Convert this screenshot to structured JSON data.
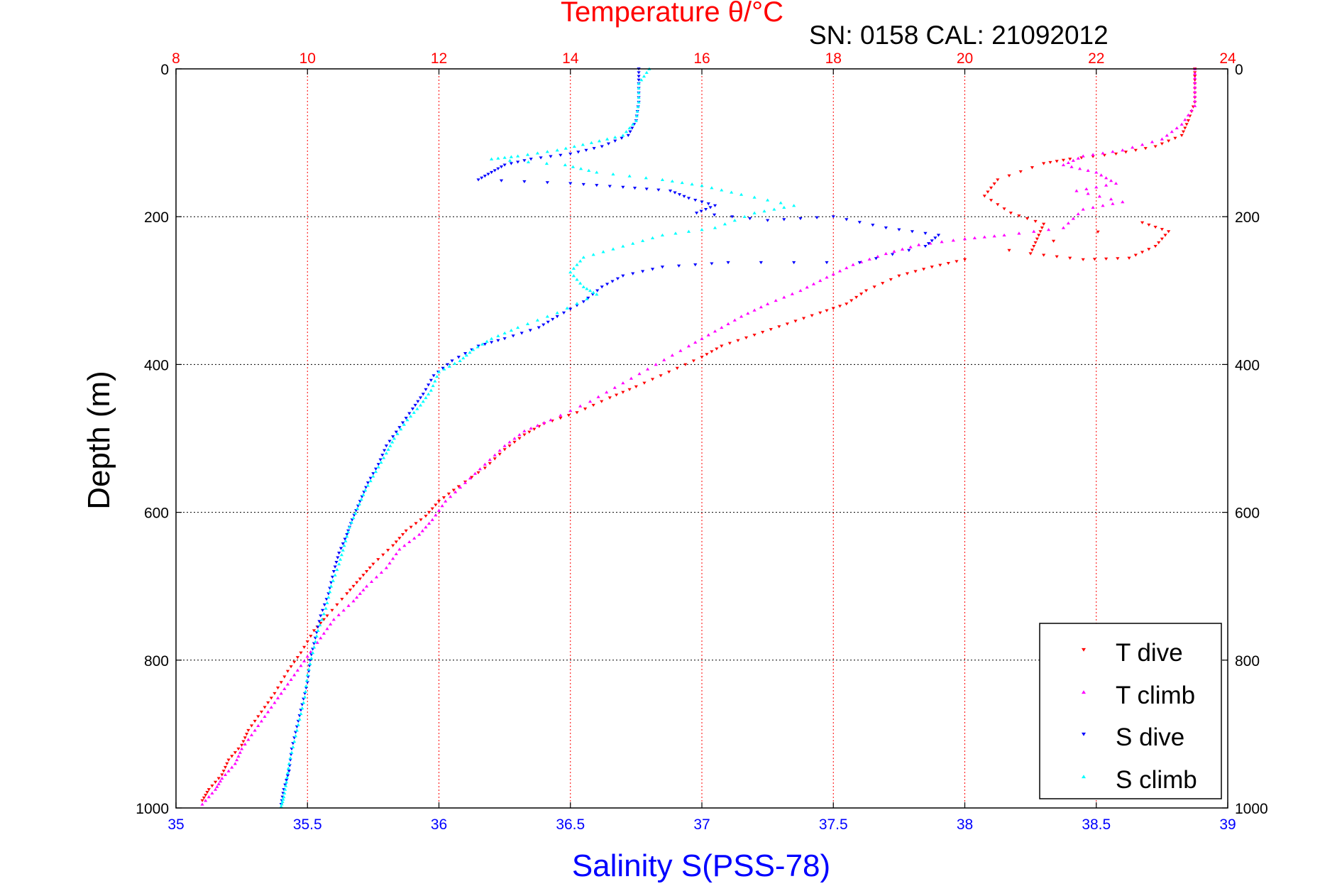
{
  "colors": {
    "temperature_axis": "#ff0000",
    "salinity_axis": "#0000ff",
    "depth_axis": "#000000",
    "grid_depth": "#000000",
    "grid_temperature": "#ff0000"
  },
  "chart_data": {
    "type": "scatter",
    "title": "Temperature θ/°C",
    "subtitle": "SN: 0158  CAL: 21092012",
    "xlabel": "Salinity S(PSS-78)",
    "ylabel": "Depth (m)",
    "x_salinity": {
      "lim": [
        35,
        39
      ],
      "ticks": [
        35,
        35.5,
        36,
        36.5,
        37,
        37.5,
        38,
        38.5,
        39
      ],
      "tick_labels": [
        "35",
        "35.5",
        "36",
        "36.5",
        "37",
        "37.5",
        "38",
        "38.5",
        "39"
      ],
      "position": "bottom"
    },
    "x_temperature": {
      "lim": [
        8,
        24
      ],
      "ticks": [
        8,
        10,
        12,
        14,
        16,
        18,
        20,
        22,
        24
      ],
      "tick_labels": [
        "8",
        "10",
        "12",
        "14",
        "16",
        "18",
        "20",
        "22",
        "24"
      ],
      "position": "top"
    },
    "y_depth": {
      "lim": [
        0,
        1000
      ],
      "reversed": true,
      "ticks": [
        0,
        200,
        400,
        600,
        800,
        1000
      ],
      "tick_labels": [
        "0",
        "200",
        "400",
        "600",
        "800",
        "1000"
      ],
      "position": "left and right"
    },
    "grid": true,
    "legend": {
      "placement": "bottom-right"
    },
    "series": [
      {
        "name": "T dive",
        "axis": "temperature",
        "color": "#ff0000",
        "marker": "triangle-down",
        "points": [
          [
            23.5,
            0
          ],
          [
            23.5,
            20
          ],
          [
            23.5,
            45
          ],
          [
            23.4,
            70
          ],
          [
            23.3,
            90
          ],
          [
            22.9,
            105
          ],
          [
            22.3,
            115
          ],
          [
            21.6,
            122
          ],
          [
            21.2,
            128
          ],
          [
            20.5,
            150
          ],
          [
            20.3,
            172
          ],
          [
            20.7,
            195
          ],
          [
            21.2,
            210
          ],
          [
            21.1,
            230
          ],
          [
            21.0,
            250
          ],
          [
            21.8,
            258
          ],
          [
            22.5,
            256
          ],
          [
            22.9,
            240
          ],
          [
            23.1,
            220
          ],
          [
            22.7,
            208
          ],
          [
            20.0,
            258
          ],
          [
            19.5,
            268
          ],
          [
            19.0,
            280
          ],
          [
            18.5,
            300
          ],
          [
            18.2,
            318
          ],
          [
            17.8,
            330
          ],
          [
            17.3,
            345
          ],
          [
            16.8,
            360
          ],
          [
            16.3,
            375
          ],
          [
            16.0,
            390
          ],
          [
            15.5,
            410
          ],
          [
            15.0,
            430
          ],
          [
            14.6,
            445
          ],
          [
            14.1,
            465
          ],
          [
            13.6,
            480
          ],
          [
            13.3,
            495
          ],
          [
            13.0,
            515
          ],
          [
            12.7,
            540
          ],
          [
            12.3,
            565
          ],
          [
            12.0,
            585
          ],
          [
            11.8,
            605
          ],
          [
            11.5,
            625
          ],
          [
            11.3,
            645
          ],
          [
            11.0,
            670
          ],
          [
            10.8,
            690
          ],
          [
            10.6,
            710
          ],
          [
            10.3,
            740
          ],
          [
            10.1,
            760
          ],
          [
            9.9,
            790
          ],
          [
            9.7,
            815
          ],
          [
            9.5,
            845
          ],
          [
            9.3,
            870
          ],
          [
            9.1,
            895
          ],
          [
            9.0,
            915
          ],
          [
            8.8,
            935
          ],
          [
            8.7,
            955
          ],
          [
            8.5,
            975
          ],
          [
            8.4,
            990
          ]
        ]
      },
      {
        "name": "T climb",
        "axis": "temperature",
        "color": "#ff00ff",
        "marker": "triangle-up",
        "points": [
          [
            23.5,
            0
          ],
          [
            23.5,
            25
          ],
          [
            23.5,
            50
          ],
          [
            23.3,
            75
          ],
          [
            23.0,
            95
          ],
          [
            22.4,
            110
          ],
          [
            21.8,
            118
          ],
          [
            21.5,
            130
          ],
          [
            22.0,
            140
          ],
          [
            22.3,
            155
          ],
          [
            21.7,
            165
          ],
          [
            22.4,
            180
          ],
          [
            21.8,
            190
          ],
          [
            21.5,
            215
          ],
          [
            20.6,
            225
          ],
          [
            20.0,
            230
          ],
          [
            19.3,
            238
          ],
          [
            18.8,
            250
          ],
          [
            18.3,
            265
          ],
          [
            17.9,
            282
          ],
          [
            17.5,
            300
          ],
          [
            17.0,
            318
          ],
          [
            16.6,
            335
          ],
          [
            16.2,
            355
          ],
          [
            15.8,
            375
          ],
          [
            15.3,
            400
          ],
          [
            14.8,
            425
          ],
          [
            14.3,
            450
          ],
          [
            13.7,
            475
          ],
          [
            13.3,
            490
          ],
          [
            13.0,
            510
          ],
          [
            12.7,
            535
          ],
          [
            12.4,
            560
          ],
          [
            12.1,
            585
          ],
          [
            11.9,
            610
          ],
          [
            11.7,
            630
          ],
          [
            11.4,
            650
          ],
          [
            11.2,
            675
          ],
          [
            10.9,
            700
          ],
          [
            10.7,
            720
          ],
          [
            10.4,
            745
          ],
          [
            10.2,
            770
          ],
          [
            10.0,
            795
          ],
          [
            9.8,
            820
          ],
          [
            9.6,
            845
          ],
          [
            9.4,
            870
          ],
          [
            9.2,
            895
          ],
          [
            9.0,
            920
          ],
          [
            8.9,
            940
          ],
          [
            8.7,
            960
          ],
          [
            8.6,
            975
          ],
          [
            8.4,
            995
          ]
        ]
      },
      {
        "name": "S dive",
        "axis": "salinity",
        "color": "#0000ff",
        "marker": "triangle-down",
        "points": [
          [
            36.76,
            0
          ],
          [
            36.76,
            20
          ],
          [
            36.76,
            45
          ],
          [
            36.75,
            70
          ],
          [
            36.72,
            90
          ],
          [
            36.62,
            105
          ],
          [
            36.5,
            115
          ],
          [
            36.35,
            122
          ],
          [
            36.25,
            130
          ],
          [
            36.2,
            140
          ],
          [
            36.15,
            150
          ],
          [
            36.5,
            155
          ],
          [
            36.7,
            160
          ],
          [
            36.88,
            165
          ],
          [
            36.95,
            175
          ],
          [
            37.05,
            185
          ],
          [
            36.98,
            195
          ],
          [
            37.25,
            205
          ],
          [
            37.5,
            200
          ],
          [
            37.7,
            215
          ],
          [
            37.9,
            225
          ],
          [
            37.85,
            240
          ],
          [
            37.6,
            262
          ],
          [
            37.1,
            262
          ],
          [
            36.85,
            268
          ],
          [
            36.7,
            280
          ],
          [
            36.62,
            295
          ],
          [
            36.55,
            315
          ],
          [
            36.45,
            335
          ],
          [
            36.38,
            350
          ],
          [
            36.25,
            365
          ],
          [
            36.15,
            375
          ],
          [
            36.05,
            395
          ],
          [
            35.98,
            415
          ],
          [
            35.94,
            440
          ],
          [
            35.9,
            460
          ],
          [
            35.85,
            485
          ],
          [
            35.8,
            510
          ],
          [
            35.77,
            535
          ],
          [
            35.73,
            560
          ],
          [
            35.7,
            585
          ],
          [
            35.67,
            610
          ],
          [
            35.65,
            630
          ],
          [
            35.62,
            655
          ],
          [
            35.6,
            680
          ],
          [
            35.58,
            710
          ],
          [
            35.55,
            740
          ],
          [
            35.53,
            770
          ],
          [
            35.51,
            800
          ],
          [
            35.5,
            830
          ],
          [
            35.48,
            860
          ],
          [
            35.46,
            890
          ],
          [
            35.44,
            920
          ],
          [
            35.43,
            950
          ],
          [
            35.41,
            975
          ],
          [
            35.4,
            995
          ]
        ]
      },
      {
        "name": "S climb",
        "axis": "salinity",
        "color": "#00ffff",
        "marker": "triangle-up",
        "points": [
          [
            36.8,
            0
          ],
          [
            36.76,
            20
          ],
          [
            36.76,
            45
          ],
          [
            36.75,
            70
          ],
          [
            36.7,
            90
          ],
          [
            36.58,
            100
          ],
          [
            36.45,
            110
          ],
          [
            36.3,
            118
          ],
          [
            36.2,
            122
          ],
          [
            36.48,
            130
          ],
          [
            36.6,
            140
          ],
          [
            36.85,
            150
          ],
          [
            37.0,
            158
          ],
          [
            37.15,
            170
          ],
          [
            37.35,
            185
          ],
          [
            37.2,
            195
          ],
          [
            37.05,
            215
          ],
          [
            36.85,
            225
          ],
          [
            36.7,
            240
          ],
          [
            36.55,
            255
          ],
          [
            36.5,
            275
          ],
          [
            36.55,
            295
          ],
          [
            36.6,
            305
          ],
          [
            36.45,
            330
          ],
          [
            36.3,
            350
          ],
          [
            36.2,
            365
          ],
          [
            36.13,
            380
          ],
          [
            36.08,
            395
          ],
          [
            36.0,
            410
          ],
          [
            35.97,
            435
          ],
          [
            35.93,
            455
          ],
          [
            35.88,
            475
          ],
          [
            35.83,
            500
          ],
          [
            35.8,
            520
          ],
          [
            35.76,
            545
          ],
          [
            35.72,
            570
          ],
          [
            35.69,
            595
          ],
          [
            35.66,
            620
          ],
          [
            35.64,
            645
          ],
          [
            35.62,
            670
          ],
          [
            35.59,
            700
          ],
          [
            35.57,
            730
          ],
          [
            35.54,
            760
          ],
          [
            35.52,
            790
          ],
          [
            35.5,
            820
          ],
          [
            35.49,
            850
          ],
          [
            35.47,
            880
          ],
          [
            35.45,
            910
          ],
          [
            35.43,
            940
          ],
          [
            35.42,
            965
          ],
          [
            35.41,
            985
          ],
          [
            35.4,
            998
          ]
        ]
      }
    ]
  }
}
